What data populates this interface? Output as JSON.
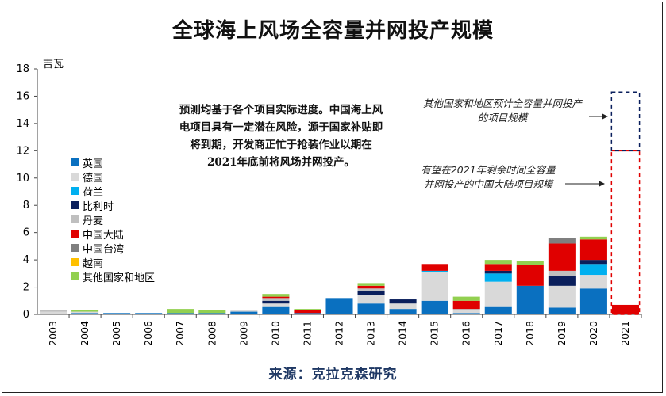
{
  "title": "全球海上风场全容量并网投产规模",
  "unit_label": "吉瓦",
  "note": "预测均基于各个项目实际进度。中国海上风电项目具有一定潜在风险，源于国家补贴即将到期，开发商正忙于抢装作业以期在2021年底前将风场并网投产。",
  "annotation_other": "其他国家和地区预计全容量并网投产的项目规模",
  "annotation_china": "有望在2021年剩余时间全容量并网投产的中国大陆项目规模",
  "source": "来源：克拉克森研究",
  "chart_data": {
    "type": "bar",
    "stacked": true,
    "ylim": [
      0,
      18
    ],
    "yticks": [
      0,
      2,
      4,
      6,
      8,
      10,
      12,
      14,
      16,
      18
    ],
    "grid": false,
    "legend_position": "left",
    "categories": [
      "2003",
      "2004",
      "2005",
      "2006",
      "2007",
      "2008",
      "2009",
      "2010",
      "2011",
      "2012",
      "2013",
      "2014",
      "2015",
      "2016",
      "2017",
      "2018",
      "2019",
      "2020",
      "2021"
    ],
    "series": [
      {
        "name": "英国",
        "color": "#0a70c0",
        "values": [
          0,
          0.1,
          0.1,
          0.1,
          0.1,
          0.1,
          0.2,
          0.6,
          0.1,
          1.2,
          0.8,
          0.4,
          1.0,
          0.1,
          0.6,
          2.1,
          0.5,
          1.9,
          0
        ]
      },
      {
        "name": "德国",
        "color": "#d9d9d9",
        "values": [
          0.2,
          0.1,
          0,
          0,
          0,
          0,
          0.1,
          0.2,
          0,
          0,
          0.6,
          0.4,
          2.1,
          0.2,
          1.8,
          0,
          1.6,
          1.0,
          0
        ]
      },
      {
        "name": "荷兰",
        "color": "#00b0f0",
        "values": [
          0,
          0,
          0,
          0,
          0,
          0,
          0,
          0,
          0,
          0,
          0,
          0,
          0.1,
          0,
          0.6,
          0,
          0,
          0.8,
          0
        ]
      },
      {
        "name": "比利时",
        "color": "#0a1f5c",
        "values": [
          0,
          0,
          0,
          0,
          0,
          0,
          0,
          0.2,
          0,
          0,
          0.3,
          0.3,
          0,
          0,
          0.2,
          0,
          0.7,
          0.3,
          0
        ]
      },
      {
        "name": "丹麦",
        "color": "#bfbfbf",
        "values": [
          0.1,
          0,
          0,
          0,
          0,
          0,
          0,
          0.2,
          0,
          0,
          0.2,
          0,
          0,
          0.1,
          0,
          0,
          0.4,
          0,
          0
        ]
      },
      {
        "name": "中国大陆",
        "color": "#e00000",
        "values": [
          0,
          0,
          0,
          0,
          0,
          0,
          0,
          0.1,
          0.2,
          0,
          0.2,
          0,
          0.5,
          0.6,
          0.5,
          1.5,
          2.0,
          1.5,
          0.7
        ]
      },
      {
        "name": "中国台湾",
        "color": "#7f7f7f",
        "values": [
          0,
          0,
          0,
          0,
          0,
          0,
          0,
          0,
          0,
          0,
          0,
          0,
          0,
          0,
          0,
          0,
          0.4,
          0,
          0
        ]
      },
      {
        "name": "越南",
        "color": "#ffc000",
        "values": [
          0,
          0,
          0,
          0,
          0,
          0,
          0,
          0,
          0,
          0,
          0,
          0,
          0,
          0,
          0,
          0,
          0,
          0,
          0
        ]
      },
      {
        "name": "其他国家和地区",
        "color": "#92d050",
        "values": [
          0,
          0.1,
          0,
          0,
          0.3,
          0.2,
          0,
          0.2,
          0.1,
          0,
          0.2,
          0,
          0,
          0.3,
          0.3,
          0.3,
          0,
          0.2,
          0
        ]
      }
    ],
    "projected_2021": [
      {
        "name": "有望在2021年剩余时间全容量并网投产的中国大陆项目规模",
        "color": "#e00000",
        "from": 0,
        "to": 12
      },
      {
        "name": "其他国家和地区预计全容量并网投产的项目规模",
        "color": "#0a1f5c",
        "from": 12,
        "to": 16.3
      }
    ]
  }
}
